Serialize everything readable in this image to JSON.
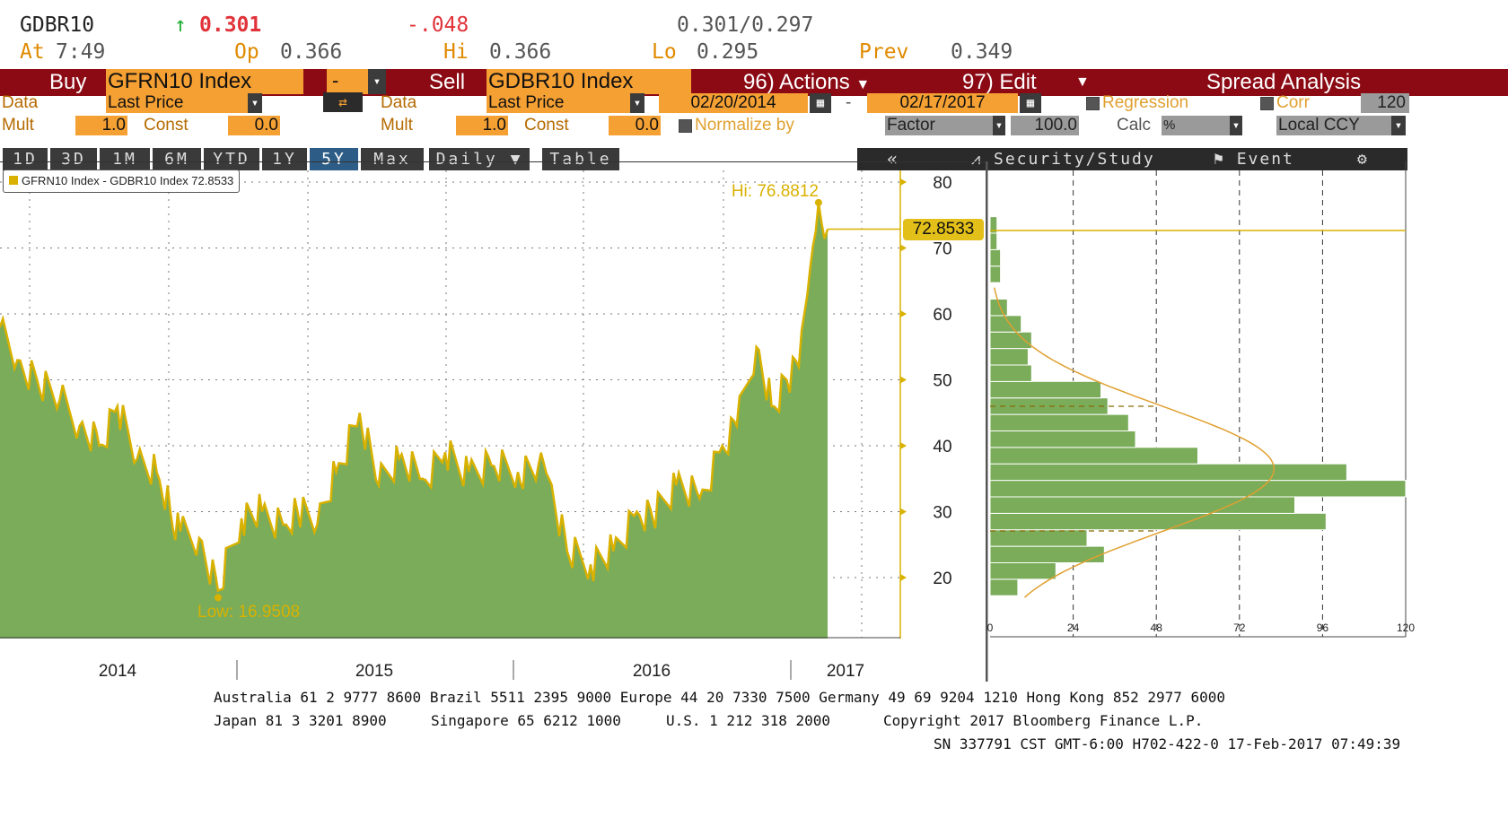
{
  "quote": {
    "ticker": "GDBR10",
    "arrow": "↑",
    "last": "0.301",
    "change": "-.048",
    "bid_ask": "0.301/0.297",
    "at_label": "At",
    "time": "7:49",
    "op_label": "Op",
    "op_value": "0.366",
    "hi_label": "Hi",
    "hi_value": "0.366",
    "lo_label": "Lo",
    "lo_value": "0.295",
    "prev_label": "Prev",
    "prev_value": "0.349"
  },
  "toolbar": {
    "buy_label": "Buy",
    "buy_security": "GFRN10 Index",
    "operator": "-",
    "sell_label": "Sell",
    "sell_security": "GDBR10 Index",
    "actions_label": "96) Actions",
    "edit_label": "97) Edit",
    "title": "Spread Analysis"
  },
  "row1": {
    "data_label": "Data",
    "buy_data_value": "Last Price",
    "sell_data_label": "Data",
    "sell_data_value": "Last Price",
    "start_date": "02/20/2014",
    "dash": "-",
    "end_date": "02/17/2017",
    "regression_label": "Regression",
    "corr_label": "Corr",
    "corr_value": "120"
  },
  "row2": {
    "mult_label": "Mult",
    "buy_mult": "1.0",
    "const_label": "Const",
    "buy_const": "0.0",
    "sell_mult_label": "Mult",
    "sell_mult": "1.0",
    "sell_const_label": "Const",
    "sell_const": "0.0",
    "normalize_label": "Normalize by",
    "factor_label": "Factor",
    "factor_value": "100.0",
    "calc_label": "Calc",
    "calc_value": "%",
    "ccy_label": "Local CCY"
  },
  "periods": [
    "1D",
    "3D",
    "1M",
    "6M",
    "YTD",
    "1Y",
    "5Y",
    "Max"
  ],
  "active_period": "5Y",
  "frequency": "Daily",
  "table_label": "Table",
  "chart_tools": {
    "back_label": "«",
    "study_label": "Security/Study",
    "event_label": "Event"
  },
  "colors": {
    "header_bar": "#8b0a14",
    "field_orange": "#f5a033",
    "area_fill": "#7aac5a",
    "line_gold": "#d9b100",
    "hist_fill": "#7aac5a"
  },
  "chart_data": [
    {
      "type": "area",
      "legend": "GFRN10 Index - GDBR10 Index 72.8533",
      "last_value_label": "72.8533",
      "hi_label": "Hi: 76.8812",
      "low_label": "Low: 16.9508",
      "x_tick_labels": [
        "2014",
        "2015",
        "2016",
        "2017"
      ],
      "y_tick_labels": [
        "20",
        "30",
        "40",
        "50",
        "60",
        "70",
        "80"
      ],
      "ylim": [
        13,
        82
      ],
      "grid": true,
      "x": [
        "2014-02-20",
        "2014-03-15",
        "2014-04-10",
        "2014-05-10",
        "2014-06-05",
        "2014-07-01",
        "2014-07-25",
        "2014-08-20",
        "2014-09-15",
        "2014-10-03",
        "2014-10-16",
        "2014-11-10",
        "2014-12-05",
        "2015-01-05",
        "2015-02-01",
        "2015-03-01",
        "2015-03-20",
        "2015-04-15",
        "2015-05-10",
        "2015-06-10",
        "2015-07-05",
        "2015-08-01",
        "2015-09-01",
        "2015-10-01",
        "2015-11-01",
        "2015-12-01",
        "2016-01-05",
        "2016-02-01",
        "2016-02-15",
        "2016-03-10",
        "2016-04-10",
        "2016-05-10",
        "2016-06-10",
        "2016-07-01",
        "2016-08-01",
        "2016-09-01",
        "2016-10-01",
        "2016-10-20",
        "2016-11-15",
        "2016-12-05",
        "2016-12-25",
        "2017-01-10",
        "2017-01-25",
        "2017-02-05",
        "2017-02-17"
      ],
      "y": [
        58,
        53,
        50,
        47,
        43,
        40,
        46,
        38,
        36,
        30,
        27,
        26,
        18,
        29,
        30,
        28,
        30,
        28,
        36,
        45,
        34,
        38,
        35,
        39,
        36,
        37,
        36,
        37,
        35,
        24,
        22,
        24,
        30,
        29,
        34,
        32,
        40,
        43,
        55,
        46,
        50,
        52,
        67,
        76.88,
        72.85
      ]
    },
    {
      "type": "bar",
      "orientation": "horizontal",
      "x_tick_labels": [
        "0",
        "24",
        "48",
        "72",
        "96",
        "120"
      ],
      "xlim": [
        0,
        120
      ],
      "bin_centers": [
        18.5,
        21,
        23.5,
        26,
        28.5,
        31,
        33.5,
        36,
        38.5,
        41,
        43.5,
        46,
        48.5,
        51,
        53.5,
        56,
        58.5,
        61,
        63.5,
        66,
        68.5,
        71,
        73.5
      ],
      "counts": [
        8,
        19,
        33,
        28,
        97,
        88,
        120,
        103,
        60,
        42,
        40,
        34,
        32,
        12,
        11,
        12,
        9,
        5,
        0,
        3,
        3,
        2,
        2
      ]
    }
  ],
  "footer": {
    "line1": "Australia 61 2 9777 8600 Brazil 5511 2395 9000 Europe 44 20 7330 7500 Germany 49 69 9204 1210 Hong Kong 852 2977 6000",
    "line2a": "Japan 81 3 3201 8900",
    "line2b": "Singapore 65 6212 1000",
    "line2c": "U.S. 1 212 318 2000",
    "line2d": "Copyright 2017 Bloomberg Finance L.P.",
    "line3": "SN 337791 CST  GMT-6:00 H702-422-0 17-Feb-2017 07:49:39"
  }
}
